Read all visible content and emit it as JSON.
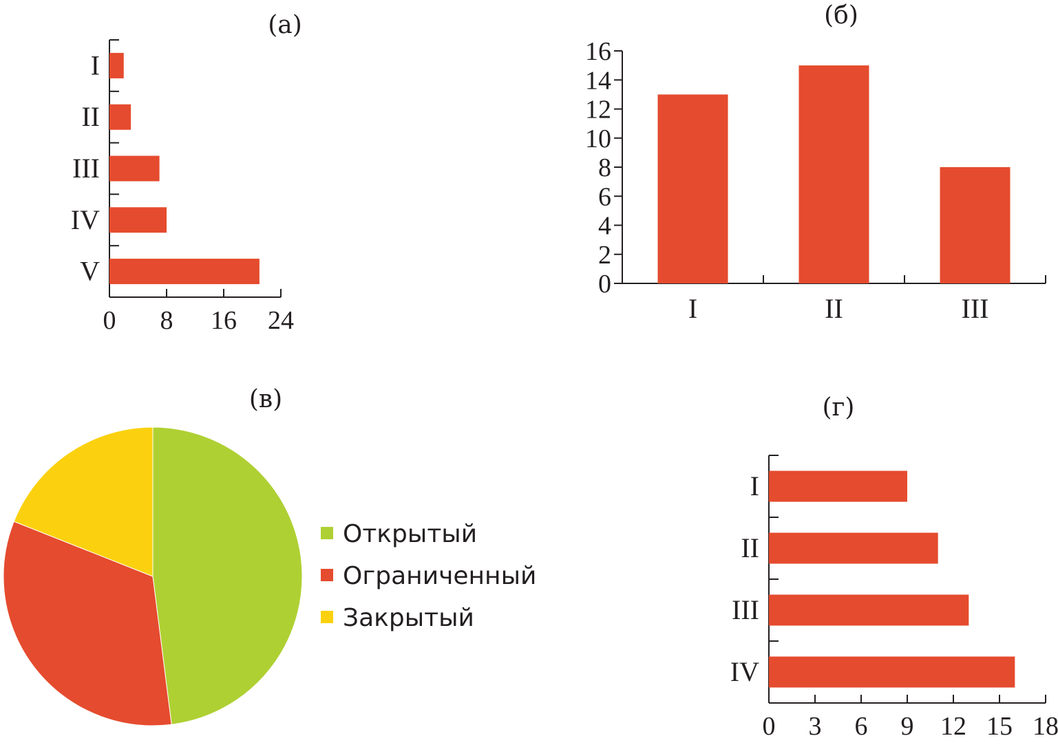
{
  "colors": {
    "bar": "#e54b2e",
    "open": "#afd033",
    "limited": "#e54b2e",
    "closed": "#fbd10f",
    "axis": "#231f20"
  },
  "chart_data": [
    {
      "id": "a",
      "type": "bar",
      "orientation": "horizontal",
      "title": "(а)",
      "categories": [
        "I",
        "II",
        "III",
        "IV",
        "V"
      ],
      "values": [
        2,
        3,
        7,
        8,
        21
      ],
      "xlim": [
        0,
        24
      ],
      "xticks": [
        "0",
        "8",
        "16",
        "24"
      ],
      "xlabel": "",
      "ylabel": ""
    },
    {
      "id": "b",
      "type": "bar",
      "orientation": "vertical",
      "title": "(б)",
      "categories": [
        "I",
        "II",
        "III"
      ],
      "values": [
        13,
        15,
        8
      ],
      "ylim": [
        0,
        16
      ],
      "yticks": [
        "0",
        "2",
        "4",
        "6",
        "8",
        "10",
        "12",
        "14",
        "16"
      ],
      "xlabel": "",
      "ylabel": ""
    },
    {
      "id": "v",
      "type": "pie",
      "title": "(в)",
      "slices": [
        {
          "label": "Открытый",
          "value": 48,
          "color": "#afd033"
        },
        {
          "label": "Ограниченный",
          "value": 33,
          "color": "#e54b2e"
        },
        {
          "label": "Закрытый",
          "value": 19,
          "color": "#fbd10f"
        }
      ],
      "legend_position": "right"
    },
    {
      "id": "g",
      "type": "bar",
      "orientation": "horizontal",
      "title": "(г)",
      "categories": [
        "I",
        "II",
        "III",
        "IV"
      ],
      "values": [
        9,
        11,
        13,
        16
      ],
      "xlim": [
        0,
        18
      ],
      "xticks": [
        "0",
        "3",
        "6",
        "9",
        "12",
        "15",
        "18"
      ],
      "xlabel": "",
      "ylabel": ""
    }
  ]
}
